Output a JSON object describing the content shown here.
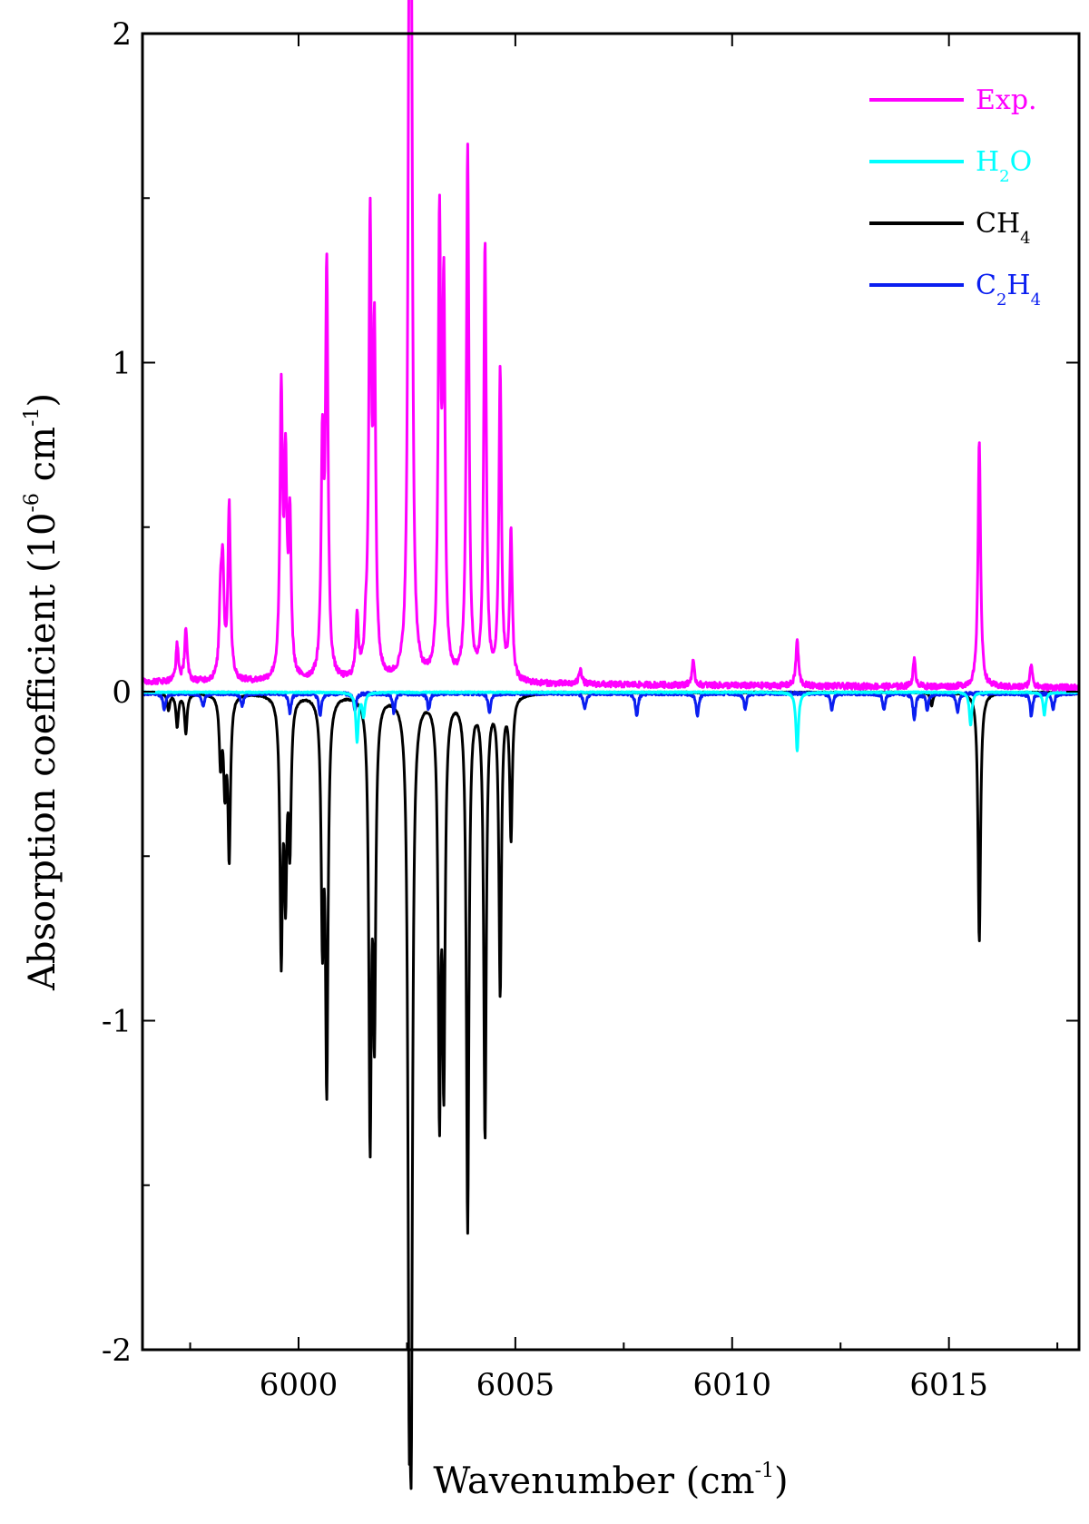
{
  "chart_data": {
    "type": "line",
    "xlabel": {
      "text": "Wavenumber (cm",
      "sup": "-1",
      "close": ")"
    },
    "ylabel": {
      "text": "Absorption coefficient (10",
      "sup1": "-6",
      "mid": " cm",
      "sup2": "-1",
      "close": ")"
    },
    "xlim": [
      5996.4,
      6018.0
    ],
    "ylim": [
      -2,
      2
    ],
    "xticks": [
      6000,
      6005,
      6010,
      6015
    ],
    "xtick_labels": [
      "6000",
      "6005",
      "6010",
      "6015"
    ],
    "yticks": [
      2,
      1,
      0,
      -1,
      -2
    ],
    "ytick_labels": [
      "2",
      "1",
      "0",
      "-1",
      "-2"
    ],
    "legend_position": "top-right",
    "series": [
      {
        "name": "Exp.",
        "color": "#ff00ff",
        "direction": "up",
        "baseline": 0.03,
        "peaks": [
          [
            5997.2,
            0.11
          ],
          [
            5997.4,
            0.16
          ],
          [
            5998.2,
            0.22
          ],
          [
            5998.25,
            0.32
          ],
          [
            5998.4,
            0.53
          ],
          [
            5999.6,
            0.85
          ],
          [
            5999.7,
            0.61
          ],
          [
            5999.8,
            0.47
          ],
          [
            6000.55,
            0.68
          ],
          [
            6000.65,
            1.23
          ],
          [
            6001.35,
            0.19
          ],
          [
            6001.55,
            0.09
          ],
          [
            6001.65,
            1.34
          ],
          [
            6001.75,
            0.99
          ],
          [
            6002.55,
            1.7
          ],
          [
            6002.6,
            1.78
          ],
          [
            6003.25,
            1.35
          ],
          [
            6003.35,
            1.13
          ],
          [
            6003.9,
            1.62
          ],
          [
            6004.3,
            1.32
          ],
          [
            6004.65,
            0.94
          ],
          [
            6004.9,
            0.45
          ],
          [
            6006.5,
            0.05
          ],
          [
            6009.1,
            0.07
          ],
          [
            6011.5,
            0.14
          ],
          [
            6014.2,
            0.08
          ],
          [
            6015.7,
            0.75
          ],
          [
            6016.9,
            0.07
          ]
        ]
      },
      {
        "name": "H2O",
        "color": "#00ffff",
        "direction": "down",
        "baseline": 0.0,
        "peaks": [
          [
            6001.35,
            -0.15
          ],
          [
            6001.5,
            -0.07
          ],
          [
            6011.5,
            -0.18
          ],
          [
            6015.5,
            -0.1
          ],
          [
            6017.2,
            -0.07
          ]
        ]
      },
      {
        "name": "CH4",
        "color": "#000000",
        "direction": "down",
        "baseline": 0.0,
        "peaks": [
          [
            5997.0,
            -0.05
          ],
          [
            5997.2,
            -0.1
          ],
          [
            5997.4,
            -0.12
          ],
          [
            5998.2,
            -0.2
          ],
          [
            5998.3,
            -0.26
          ],
          [
            5998.4,
            -0.49
          ],
          [
            5999.6,
            -0.77
          ],
          [
            5999.7,
            -0.55
          ],
          [
            5999.8,
            -0.43
          ],
          [
            6000.55,
            -0.69
          ],
          [
            6000.65,
            -1.16
          ],
          [
            6001.65,
            -1.3
          ],
          [
            6001.75,
            -0.96
          ],
          [
            6002.55,
            -1.68
          ],
          [
            6002.6,
            -1.81
          ],
          [
            6003.25,
            -1.21
          ],
          [
            6003.35,
            -1.11
          ],
          [
            6003.9,
            -1.62
          ],
          [
            6004.3,
            -1.34
          ],
          [
            6004.65,
            -0.9
          ],
          [
            6004.9,
            -0.43
          ],
          [
            6014.6,
            -0.04
          ],
          [
            6015.7,
            -0.76
          ]
        ]
      },
      {
        "name": "C2H4",
        "color": "#0a1ef0",
        "direction": "down",
        "baseline": 0.0,
        "peaks": [
          [
            5996.9,
            -0.05
          ],
          [
            5997.8,
            -0.04
          ],
          [
            5998.7,
            -0.04
          ],
          [
            5999.8,
            -0.06
          ],
          [
            6000.5,
            -0.07
          ],
          [
            6001.3,
            -0.05
          ],
          [
            6002.2,
            -0.06
          ],
          [
            6003.0,
            -0.05
          ],
          [
            6004.4,
            -0.06
          ],
          [
            6006.6,
            -0.05
          ],
          [
            6007.8,
            -0.07
          ],
          [
            6009.2,
            -0.07
          ],
          [
            6010.3,
            -0.05
          ],
          [
            6012.3,
            -0.05
          ],
          [
            6013.5,
            -0.05
          ],
          [
            6014.2,
            -0.08
          ],
          [
            6014.5,
            -0.05
          ],
          [
            6015.2,
            -0.06
          ],
          [
            6016.9,
            -0.07
          ],
          [
            6017.4,
            -0.05
          ]
        ]
      }
    ]
  },
  "legend": {
    "items": [
      {
        "name": "exp",
        "color": "#ff00ff",
        "parts": [
          [
            "Exp.",
            false
          ]
        ]
      },
      {
        "name": "h2o",
        "color": "#00ffff",
        "parts": [
          [
            "H",
            false
          ],
          [
            "2",
            true
          ],
          [
            "O",
            false
          ]
        ]
      },
      {
        "name": "ch4",
        "color": "#000000",
        "parts": [
          [
            "CH",
            false
          ],
          [
            "4",
            true
          ]
        ]
      },
      {
        "name": "c2h4",
        "color": "#0a1ef0",
        "parts": [
          [
            "C",
            false
          ],
          [
            "2",
            true
          ],
          [
            "H",
            false
          ],
          [
            "4",
            true
          ]
        ]
      }
    ]
  }
}
